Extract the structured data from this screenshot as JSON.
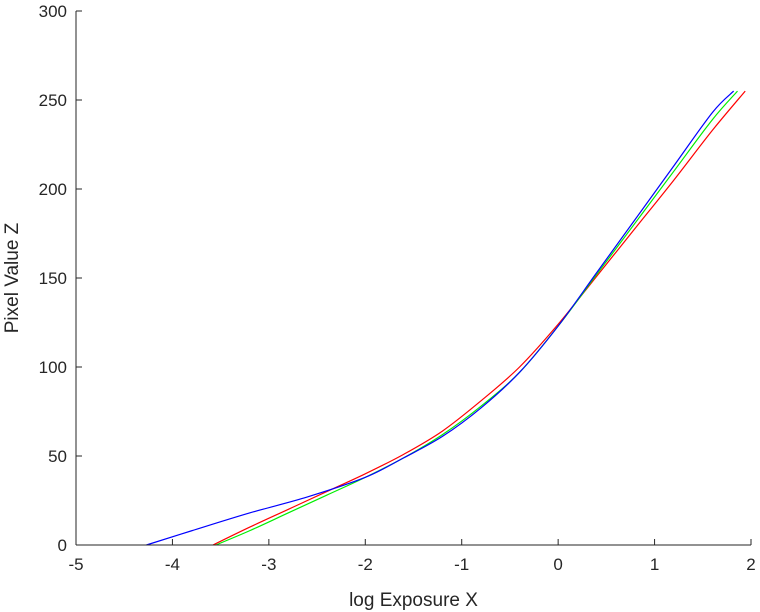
{
  "chart_data": {
    "type": "line",
    "title": "",
    "xlabel": "log Exposure X",
    "ylabel": "Pixel Value Z",
    "xlim": [
      -5,
      2
    ],
    "ylim": [
      0,
      300
    ],
    "xticks": [
      -5,
      -4,
      -3,
      -2,
      -1,
      0,
      1,
      2
    ],
    "yticks": [
      0,
      50,
      100,
      150,
      200,
      250,
      300
    ],
    "grid": false,
    "legend": "none",
    "series": [
      {
        "color": "#ff0000",
        "x": [
          -3.58,
          -3.2,
          -2.8,
          -2.4,
          -2.0,
          -1.6,
          -1.2,
          -0.8,
          -0.4,
          0.0,
          0.4,
          0.8,
          1.2,
          1.6,
          1.94
        ],
        "y": [
          0,
          10,
          20,
          30,
          40,
          51,
          64,
          81,
          100,
          124,
          151,
          178,
          205,
          233,
          255
        ]
      },
      {
        "color": "#00ee00",
        "x": [
          -3.55,
          -3.2,
          -2.8,
          -2.4,
          -2.0,
          -1.6,
          -1.2,
          -0.8,
          -0.4,
          0.0,
          0.4,
          0.8,
          1.2,
          1.6,
          1.86
        ],
        "y": [
          0,
          8,
          18,
          28,
          38,
          49,
          62,
          78,
          97,
          123,
          152,
          181,
          210,
          239,
          255
        ]
      },
      {
        "color": "#0000ff",
        "x": [
          -4.27,
          -3.8,
          -3.2,
          -2.6,
          -2.0,
          -1.6,
          -1.2,
          -0.8,
          -0.4,
          0.0,
          0.4,
          0.8,
          1.2,
          1.6,
          1.82
        ],
        "y": [
          0,
          8,
          18,
          27,
          38,
          49,
          61,
          77,
          97,
          123,
          153,
          183,
          213,
          243,
          255
        ]
      }
    ]
  }
}
